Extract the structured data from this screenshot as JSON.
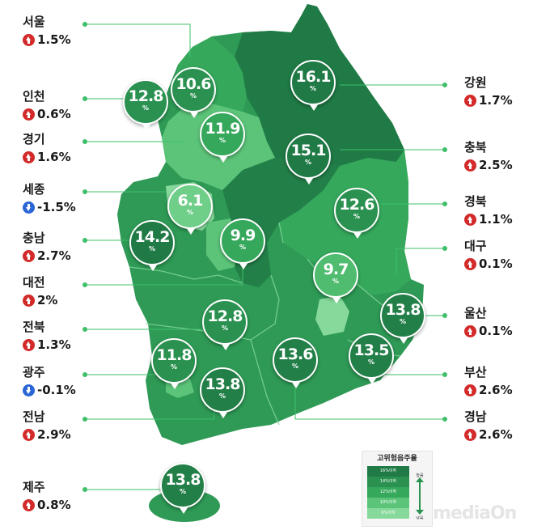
{
  "colors": {
    "up": "#d32a2a",
    "down": "#2b66d6",
    "leader": "#3fbf6a",
    "shade_darkest": "#1f7a45",
    "shade_dark": "#2a9150",
    "shade_mid": "#35a85c",
    "shade_light": "#5cc479",
    "shade_lightest": "#86d89b"
  },
  "regions": {
    "seoul": {
      "name": "서울",
      "change": "1.5%",
      "trend": "up",
      "rate": "10.6",
      "unit": "%"
    },
    "incheon": {
      "name": "인천",
      "change": "0.6%",
      "trend": "up",
      "rate": "12.8",
      "unit": "%"
    },
    "gyeonggi": {
      "name": "경기",
      "change": "1.6%",
      "trend": "up",
      "rate": "11.9",
      "unit": "%"
    },
    "sejong": {
      "name": "세종",
      "change": "-1.5%",
      "trend": "down",
      "rate": "6.1",
      "unit": "%"
    },
    "chungnam": {
      "name": "충남",
      "change": "2.7%",
      "trend": "up",
      "rate": "14.2",
      "unit": "%"
    },
    "daejeon": {
      "name": "대전",
      "change": "2%",
      "trend": "up",
      "rate": "9.9",
      "unit": "%"
    },
    "jeonbuk": {
      "name": "전북",
      "change": "1.3%",
      "trend": "up",
      "rate": "12.8",
      "unit": "%"
    },
    "gwangju": {
      "name": "광주",
      "change": "-0.1%",
      "trend": "down",
      "rate": "11.8",
      "unit": "%"
    },
    "jeonnam": {
      "name": "전남",
      "change": "2.9%",
      "trend": "up",
      "rate": "13.8",
      "unit": "%"
    },
    "jeju": {
      "name": "제주",
      "change": "0.8%",
      "trend": "up",
      "rate": "13.8",
      "unit": "%"
    },
    "gangwon": {
      "name": "강원",
      "change": "1.7%",
      "trend": "up",
      "rate": "16.1",
      "unit": "%"
    },
    "chungbuk": {
      "name": "충북",
      "change": "2.5%",
      "trend": "up",
      "rate": "15.1",
      "unit": "%"
    },
    "gyeongbuk": {
      "name": "경북",
      "change": "1.1%",
      "trend": "up",
      "rate": "12.6",
      "unit": "%"
    },
    "daegu": {
      "name": "대구",
      "change": "0.1%",
      "trend": "up",
      "rate": "9.7",
      "unit": "%"
    },
    "ulsan": {
      "name": "울산",
      "change": "0.1%",
      "trend": "up",
      "rate": "13.8",
      "unit": "%"
    },
    "busan": {
      "name": "부산",
      "change": "2.6%",
      "trend": "up",
      "rate": "13.5",
      "unit": "%"
    },
    "gyeongnam": {
      "name": "경남",
      "change": "2.6%",
      "trend": "up",
      "rate": "13.6",
      "unit": "%"
    }
  },
  "legend": {
    "title": "고위험음주율",
    "rows": [
      "16%이하",
      "14%이하",
      "12%이하",
      "10%이하",
      "8%이하"
    ],
    "high_label": "높음",
    "low_label": "낮음"
  },
  "watermark": "mediaOn"
}
